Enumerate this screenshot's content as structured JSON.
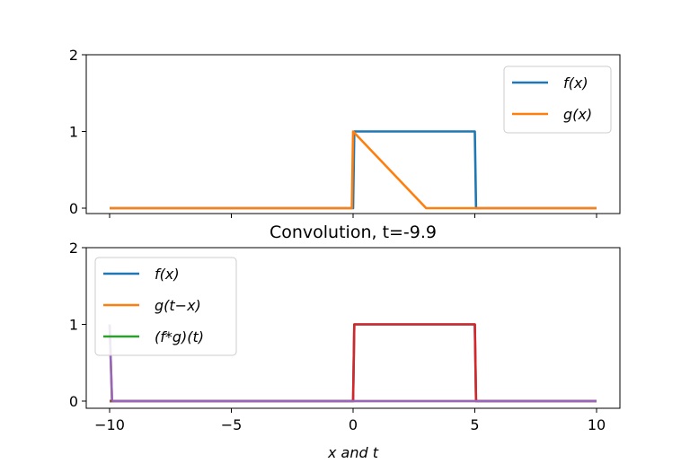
{
  "chart_data": [
    {
      "type": "line",
      "title": "",
      "xlim": [
        -11,
        11
      ],
      "ylim": [
        -0.07,
        2
      ],
      "yticks": [
        "0",
        "1",
        "2"
      ],
      "xticks": [
        -10,
        -5,
        0,
        5,
        10
      ],
      "xtick_labels_shown": false,
      "legend": "top-right",
      "series": [
        {
          "name": "f(x)",
          "color": "#1f77b4",
          "x": [
            -10,
            0,
            0.05,
            5,
            5.05,
            10
          ],
          "y": [
            0,
            0,
            1,
            1,
            0,
            0
          ]
        },
        {
          "name": "g(x)",
          "color": "#ff7f0e",
          "x": [
            -10,
            -0.05,
            0,
            3,
            10
          ],
          "y": [
            0,
            0,
            1,
            0,
            0
          ]
        }
      ]
    },
    {
      "type": "line",
      "title": "Convolution, t=-9.9",
      "xlabel": "x and t",
      "xlim": [
        -11,
        11
      ],
      "ylim": [
        -0.07,
        2
      ],
      "yticks": [
        "0",
        "1",
        "2"
      ],
      "xticks": [
        -10,
        -5,
        0,
        5,
        10
      ],
      "xtick_labels": [
        "−10",
        "−5",
        "0",
        "5",
        "10"
      ],
      "legend": "top-left",
      "series": [
        {
          "name": "f(x)",
          "color": "#1f77b4",
          "x": [
            -10,
            0,
            0.05,
            5,
            5.05,
            10
          ],
          "y": [
            0,
            0,
            1,
            1,
            0,
            0
          ]
        },
        {
          "name": "g(t−x)",
          "color": "#ff7f0e",
          "x": [
            -10,
            -9.9,
            10
          ],
          "y": [
            1,
            0,
            0
          ]
        },
        {
          "name": "(f*g)(t)",
          "color": "#2ca02c",
          "x": [
            -10,
            -9.9
          ],
          "y": [
            0,
            0
          ]
        },
        {
          "color": "#d62728",
          "x": [
            -10,
            0,
            0.05,
            5,
            5.05,
            10
          ],
          "y": [
            0,
            0,
            1,
            1,
            0,
            0
          ]
        },
        {
          "color": "#9467bd",
          "x": [
            -10,
            -9.9,
            10
          ],
          "y": [
            1,
            0,
            0
          ]
        },
        {
          "color": "#8c564b",
          "x": [
            -10,
            -9.9
          ],
          "y": [
            0,
            0
          ]
        }
      ]
    }
  ]
}
